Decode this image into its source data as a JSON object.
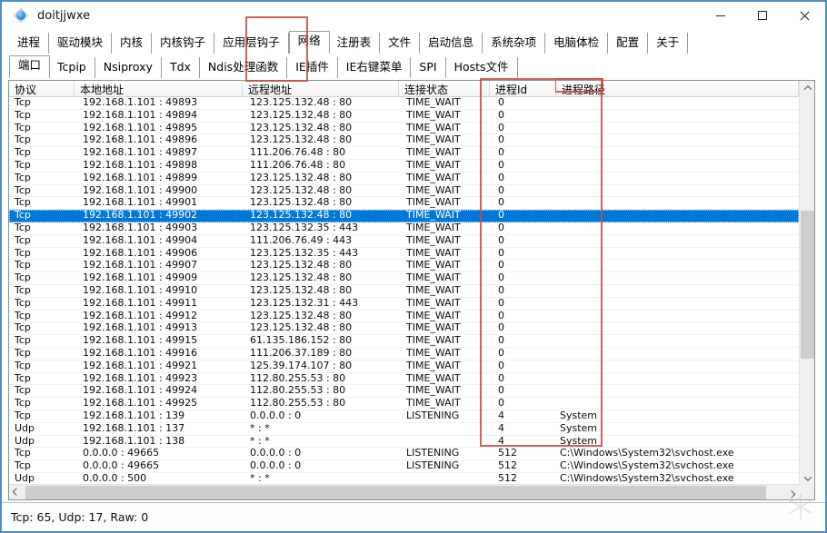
{
  "colors": {
    "accent": "#0078d7",
    "annotation": "#c74840",
    "window_border": "#4d8fc0"
  },
  "window": {
    "title": "doitjjwxe"
  },
  "main_tabs": {
    "items": [
      "进程",
      "驱动模块",
      "内核",
      "内核钩子",
      "应用层钩子",
      "网络",
      "注册表",
      "文件",
      "启动信息",
      "系统杂项",
      "电脑体检",
      "配置",
      "关于"
    ],
    "selected": "网络"
  },
  "sub_tabs": {
    "items": [
      "端口",
      "Tcpip",
      "Nsiproxy",
      "Tdx",
      "Ndis处理函数",
      "IE插件",
      "IE右键菜单",
      "SPI",
      "Hosts文件"
    ],
    "selected": "端口"
  },
  "table": {
    "columns": [
      "协议",
      "本地地址",
      "远程地址",
      "连接状态",
      "进程Id",
      "进程路径"
    ],
    "selected_index": 9,
    "rows": [
      [
        "Tcp",
        "192.168.1.101 : 49893",
        "123.125.132.48 : 80",
        "TIME_WAIT",
        "0",
        ""
      ],
      [
        "Tcp",
        "192.168.1.101 : 49894",
        "123.125.132.48 : 80",
        "TIME_WAIT",
        "0",
        ""
      ],
      [
        "Tcp",
        "192.168.1.101 : 49895",
        "123.125.132.48 : 80",
        "TIME_WAIT",
        "0",
        ""
      ],
      [
        "Tcp",
        "192.168.1.101 : 49896",
        "123.125.132.48 : 80",
        "TIME_WAIT",
        "0",
        ""
      ],
      [
        "Tcp",
        "192.168.1.101 : 49897",
        "111.206.76.48 : 80",
        "TIME_WAIT",
        "0",
        ""
      ],
      [
        "Tcp",
        "192.168.1.101 : 49898",
        "111.206.76.48 : 80",
        "TIME_WAIT",
        "0",
        ""
      ],
      [
        "Tcp",
        "192.168.1.101 : 49899",
        "123.125.132.48 : 80",
        "TIME_WAIT",
        "0",
        ""
      ],
      [
        "Tcp",
        "192.168.1.101 : 49900",
        "123.125.132.48 : 80",
        "TIME_WAIT",
        "0",
        ""
      ],
      [
        "Tcp",
        "192.168.1.101 : 49901",
        "123.125.132.48 : 80",
        "TIME_WAIT",
        "0",
        ""
      ],
      [
        "Tcp",
        "192.168.1.101 : 49902",
        "123.125.132.48 : 80",
        "TIME_WAIT",
        "0",
        ""
      ],
      [
        "Tcp",
        "192.168.1.101 : 49903",
        "123.125.132.35 : 443",
        "TIME_WAIT",
        "0",
        ""
      ],
      [
        "Tcp",
        "192.168.1.101 : 49904",
        "111.206.76.49 : 443",
        "TIME_WAIT",
        "0",
        ""
      ],
      [
        "Tcp",
        "192.168.1.101 : 49906",
        "123.125.132.35 : 443",
        "TIME_WAIT",
        "0",
        ""
      ],
      [
        "Tcp",
        "192.168.1.101 : 49907",
        "123.125.132.48 : 80",
        "TIME_WAIT",
        "0",
        ""
      ],
      [
        "Tcp",
        "192.168.1.101 : 49909",
        "123.125.132.48 : 80",
        "TIME_WAIT",
        "0",
        ""
      ],
      [
        "Tcp",
        "192.168.1.101 : 49910",
        "123.125.132.48 : 80",
        "TIME_WAIT",
        "0",
        ""
      ],
      [
        "Tcp",
        "192.168.1.101 : 49911",
        "123.125.132.31 : 443",
        "TIME_WAIT",
        "0",
        ""
      ],
      [
        "Tcp",
        "192.168.1.101 : 49912",
        "123.125.132.48 : 80",
        "TIME_WAIT",
        "0",
        ""
      ],
      [
        "Tcp",
        "192.168.1.101 : 49913",
        "123.125.132.48 : 80",
        "TIME_WAIT",
        "0",
        ""
      ],
      [
        "Tcp",
        "192.168.1.101 : 49915",
        "61.135.186.152 : 80",
        "TIME_WAIT",
        "0",
        ""
      ],
      [
        "Tcp",
        "192.168.1.101 : 49916",
        "111.206.37.189 : 80",
        "TIME_WAIT",
        "0",
        ""
      ],
      [
        "Tcp",
        "192.168.1.101 : 49921",
        "125.39.174.107 : 80",
        "TIME_WAIT",
        "0",
        ""
      ],
      [
        "Tcp",
        "192.168.1.101 : 49923",
        "112.80.255.53 : 80",
        "TIME_WAIT",
        "0",
        ""
      ],
      [
        "Tcp",
        "192.168.1.101 : 49924",
        "112.80.255.53 : 80",
        "TIME_WAIT",
        "0",
        ""
      ],
      [
        "Tcp",
        "192.168.1.101 : 49925",
        "112.80.255.53 : 80",
        "TIME_WAIT",
        "0",
        ""
      ],
      [
        "Tcp",
        "192.168.1.101 : 139",
        "0.0.0.0 : 0",
        "LISTENING",
        "4",
        "System"
      ],
      [
        "Udp",
        "192.168.1.101 : 137",
        "* : *",
        "",
        "4",
        "System"
      ],
      [
        "Udp",
        "192.168.1.101 : 138",
        "* : *",
        "",
        "4",
        "System"
      ],
      [
        "Tcp",
        "0.0.0.0 : 49665",
        "0.0.0.0 : 0",
        "LISTENING",
        "512",
        "C:\\Windows\\System32\\svchost.exe"
      ],
      [
        "Tcp",
        "0.0.0.0 : 49665",
        "0.0.0.0 : 0",
        "LISTENING",
        "512",
        "C:\\Windows\\System32\\svchost.exe"
      ],
      [
        "Udp",
        "0.0.0.0 : 500",
        "* : *",
        "",
        "512",
        "C:\\Windows\\System32\\svchost.exe"
      ]
    ]
  },
  "statusbar": {
    "text": "Tcp: 65, Udp: 17, Raw: 0"
  }
}
